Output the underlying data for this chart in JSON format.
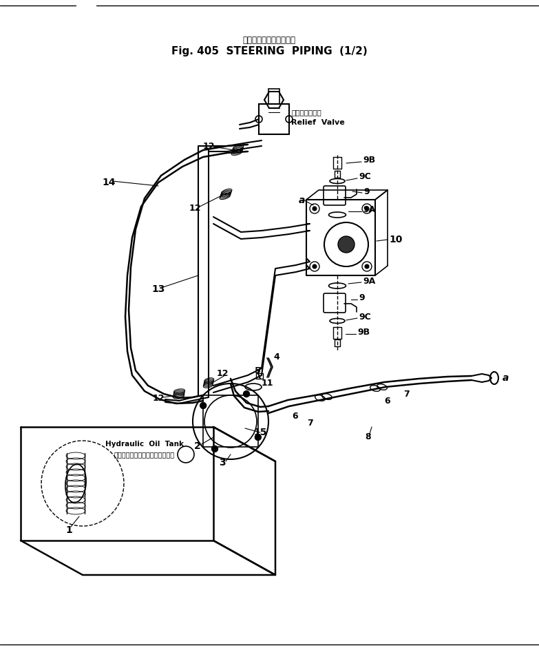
{
  "title_jp": "ステアリングパイピング",
  "title_en": "Fig. 405  STEERING  PIPING  (1/2)",
  "bg_color": "#ffffff",
  "relief_jp": "リリーフバルブ",
  "relief_en": "Relief  Valve",
  "hydraulic_jp": "ハイドロリック　オイル　タンク",
  "hydraulic_en": "Hydraulic  Oil  Tank"
}
